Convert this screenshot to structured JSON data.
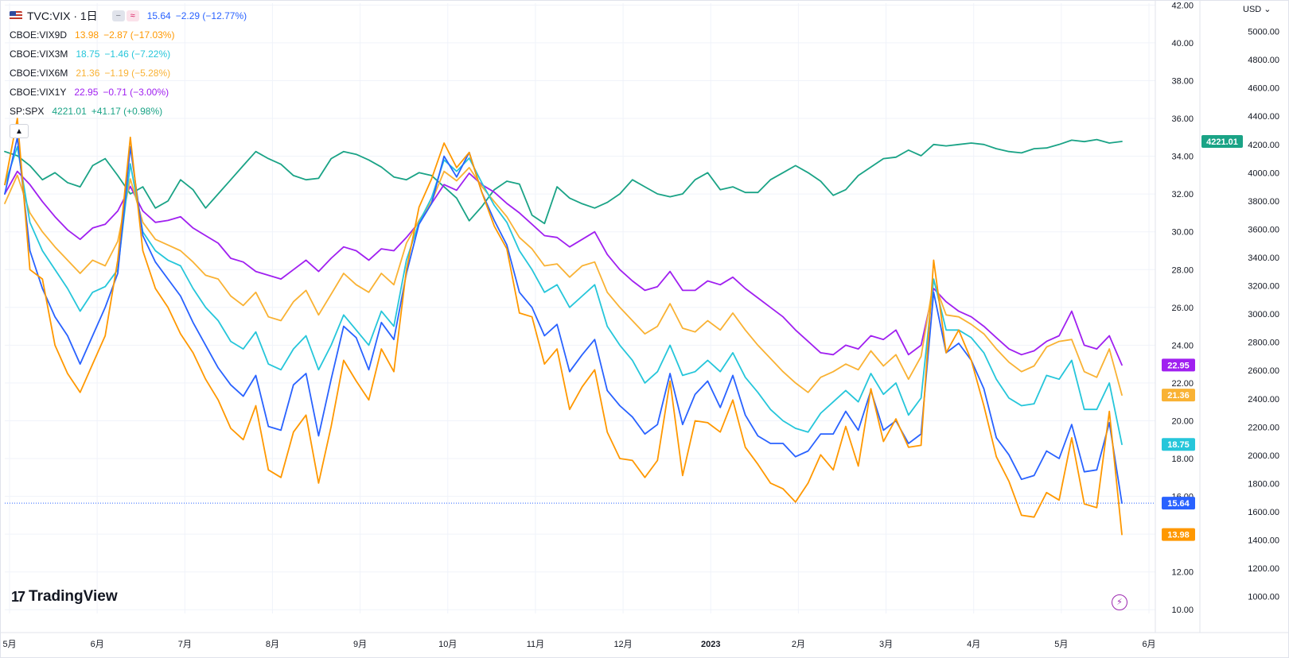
{
  "legend": {
    "main": {
      "symbol": "TVC:VIX · 1日",
      "value": "15.64",
      "change": "−2.29 (−12.77%)",
      "color": "#2962ff"
    },
    "items": [
      {
        "symbol": "CBOE:VIX9D",
        "value": "13.98",
        "change": "−2.87 (−17.03%)",
        "color": "#ff9800"
      },
      {
        "symbol": "CBOE:VIX3M",
        "value": "18.75",
        "change": "−1.46 (−7.22%)",
        "color": "#26c6da"
      },
      {
        "symbol": "CBOE:VIX6M",
        "value": "21.36",
        "change": "−1.19 (−5.28%)",
        "color": "#f9b234"
      },
      {
        "symbol": "CBOE:VIX1Y",
        "value": "22.95",
        "change": "−0.71 (−3.00%)",
        "color": "#a020f0"
      },
      {
        "symbol": "SP:SPX",
        "value": "4221.01",
        "change": "+41.17 (+0.98%)",
        "color": "#1aa386"
      }
    ],
    "collapse_icon": "chevron-up-icon"
  },
  "brand": {
    "name": "TradingView",
    "icon": "tradingview-logo-icon"
  },
  "currency_label": "USD",
  "chart_data": {
    "type": "line",
    "x_labels": [
      "5月",
      "6月",
      "7月",
      "8月",
      "9月",
      "10月",
      "11月",
      "12月",
      "2023",
      "2月",
      "3月",
      "4月",
      "5月",
      "6月"
    ],
    "y_left_ticks": [
      "42.00",
      "40.00",
      "38.00",
      "36.00",
      "34.00",
      "32.00",
      "30.00",
      "28.00",
      "26.00",
      "24.00",
      "22.00",
      "20.00",
      "18.00",
      "16.00",
      "14.00",
      "12.00",
      "10.00"
    ],
    "y_right_ticks": [
      "5000.00",
      "4800.00",
      "4600.00",
      "4400.00",
      "4200.00",
      "4000.00",
      "3800.00",
      "3600.00",
      "3400.00",
      "3200.00",
      "3000.00",
      "2800.00",
      "2600.00",
      "2400.00",
      "2200.00",
      "2000.00",
      "1800.00",
      "1600.00",
      "1400.00",
      "1200.00",
      "1000.00"
    ],
    "ylim_left": [
      9.8,
      42.1
    ],
    "ylim_right": [
      880,
      5200
    ],
    "grid": true,
    "last_value_line": 15.64,
    "series": [
      {
        "name": "SP:SPX",
        "axis": "right",
        "color": "#1aa386",
        "last_label": "4221.01",
        "values": [
          4150,
          4120,
          4050,
          3950,
          4000,
          3930,
          3900,
          4050,
          4100,
          3980,
          3850,
          3900,
          3750,
          3800,
          3950,
          3880,
          3750,
          3850,
          3950,
          4050,
          4150,
          4100,
          4060,
          3980,
          3950,
          3960,
          4100,
          4150,
          4130,
          4090,
          4040,
          3970,
          3950,
          4000,
          3980,
          3900,
          3820,
          3660,
          3760,
          3880,
          3940,
          3920,
          3700,
          3640,
          3900,
          3820,
          3780,
          3750,
          3790,
          3850,
          3950,
          3900,
          3850,
          3830,
          3850,
          3950,
          4000,
          3880,
          3900,
          3860,
          3860,
          3950,
          4000,
          4050,
          4000,
          3940,
          3840,
          3880,
          3980,
          4040,
          4100,
          4110,
          4160,
          4120,
          4200,
          4190,
          4200,
          4210,
          4200,
          4170,
          4150,
          4140,
          4170,
          4175,
          4200,
          4230,
          4220,
          4235,
          4210,
          4221
        ]
      },
      {
        "name": "CBOE:VIX1Y",
        "axis": "left",
        "color": "#a020f0",
        "last_label": "22.95",
        "values": [
          32.0,
          33.2,
          32.5,
          31.6,
          30.8,
          30.1,
          29.6,
          30.2,
          30.4,
          31.1,
          32.4,
          31.1,
          30.5,
          30.6,
          30.8,
          30.2,
          29.8,
          29.4,
          28.6,
          28.4,
          27.9,
          27.7,
          27.5,
          28.0,
          28.5,
          27.9,
          28.6,
          29.2,
          29.0,
          28.5,
          29.1,
          29.0,
          29.7,
          30.5,
          31.5,
          32.5,
          32.2,
          33.1,
          32.5,
          32.1,
          31.5,
          31.0,
          30.4,
          29.8,
          29.7,
          29.2,
          29.6,
          30.0,
          28.8,
          28.0,
          27.4,
          26.9,
          27.1,
          27.9,
          26.9,
          26.9,
          27.4,
          27.2,
          27.6,
          27.0,
          26.5,
          26.0,
          25.5,
          24.8,
          24.2,
          23.6,
          23.5,
          24.0,
          23.8,
          24.5,
          24.3,
          24.8,
          23.5,
          24.0,
          27.0,
          26.3,
          25.8,
          25.5,
          25.0,
          24.4,
          23.8,
          23.5,
          23.7,
          24.2,
          24.5,
          25.8,
          24.0,
          23.8,
          24.5,
          22.95
        ]
      },
      {
        "name": "CBOE:VIX6M",
        "axis": "left",
        "color": "#f9b234",
        "last_label": "21.36",
        "values": [
          31.5,
          33.0,
          31.0,
          30.0,
          29.2,
          28.5,
          27.8,
          28.5,
          28.2,
          29.5,
          32.8,
          30.5,
          29.6,
          29.3,
          29.0,
          28.4,
          27.7,
          27.5,
          26.6,
          26.1,
          26.8,
          25.5,
          25.3,
          26.3,
          26.9,
          25.6,
          26.7,
          27.8,
          27.2,
          26.8,
          27.8,
          27.2,
          29.4,
          30.6,
          31.6,
          33.2,
          32.7,
          33.4,
          32.4,
          31.6,
          30.8,
          29.7,
          29.1,
          28.2,
          28.3,
          27.6,
          28.2,
          28.4,
          26.8,
          26.0,
          25.3,
          24.6,
          25.0,
          26.2,
          24.9,
          24.7,
          25.3,
          24.8,
          25.7,
          24.8,
          24.0,
          23.3,
          22.6,
          22.0,
          21.5,
          22.3,
          22.6,
          23.0,
          22.7,
          23.7,
          22.9,
          23.5,
          22.2,
          23.4,
          27.4,
          25.6,
          25.5,
          25.1,
          24.6,
          23.8,
          23.1,
          22.6,
          22.9,
          23.9,
          24.2,
          24.3,
          22.6,
          22.3,
          23.8,
          21.36
        ]
      },
      {
        "name": "CBOE:VIX3M",
        "axis": "left",
        "color": "#26c6da",
        "last_label": "18.75",
        "values": [
          32.5,
          34.5,
          30.5,
          29.0,
          28.0,
          27.0,
          25.8,
          26.8,
          27.1,
          28.0,
          33.6,
          30.0,
          29.0,
          28.5,
          28.2,
          27.0,
          26.0,
          25.3,
          24.2,
          23.8,
          24.7,
          23.0,
          22.7,
          23.8,
          24.5,
          22.7,
          24.0,
          25.6,
          24.8,
          24.0,
          25.8,
          25.0,
          28.5,
          30.5,
          31.8,
          33.8,
          33.2,
          33.9,
          32.6,
          31.4,
          30.5,
          29.0,
          28.0,
          26.8,
          27.2,
          26.0,
          26.6,
          27.2,
          25.0,
          24.0,
          23.2,
          22.0,
          22.6,
          24.0,
          22.4,
          22.6,
          23.2,
          22.6,
          23.6,
          22.3,
          21.5,
          20.6,
          20.0,
          19.6,
          19.4,
          20.4,
          21.0,
          21.6,
          21.0,
          22.5,
          21.4,
          22.0,
          20.3,
          21.2,
          27.5,
          24.8,
          24.8,
          24.4,
          23.6,
          22.2,
          21.2,
          20.8,
          20.9,
          22.4,
          22.2,
          23.2,
          20.6,
          20.6,
          22.0,
          18.75
        ]
      },
      {
        "name": "TVC:VIX",
        "axis": "left",
        "color": "#2962ff",
        "last_label": "15.64",
        "values": [
          32.0,
          35.0,
          29.0,
          27.0,
          25.5,
          24.5,
          23.0,
          24.5,
          26.0,
          27.8,
          34.5,
          29.8,
          28.4,
          27.5,
          26.6,
          25.2,
          24.0,
          22.8,
          21.9,
          21.3,
          22.4,
          19.7,
          19.5,
          21.9,
          22.5,
          19.2,
          22.2,
          25.0,
          24.4,
          22.7,
          25.2,
          24.3,
          27.8,
          30.4,
          31.5,
          34.0,
          32.9,
          34.2,
          32.1,
          30.6,
          29.3,
          26.8,
          26.0,
          24.5,
          25.1,
          22.6,
          23.5,
          24.3,
          21.6,
          20.8,
          20.2,
          19.3,
          19.8,
          22.5,
          19.8,
          21.4,
          22.1,
          20.7,
          22.4,
          20.3,
          19.2,
          18.8,
          18.8,
          18.1,
          18.4,
          19.3,
          19.3,
          20.5,
          19.5,
          21.6,
          19.5,
          20.0,
          18.8,
          19.3,
          26.8,
          23.6,
          24.1,
          23.2,
          21.7,
          19.1,
          18.2,
          16.9,
          17.1,
          18.4,
          18.0,
          19.8,
          17.3,
          17.4,
          19.9,
          15.64
        ]
      },
      {
        "name": "CBOE:VIX9D",
        "axis": "left",
        "color": "#ff9800",
        "last_label": "13.98",
        "values": [
          32.5,
          36.0,
          28.0,
          27.5,
          24.0,
          22.5,
          21.5,
          23.0,
          24.5,
          28.5,
          35.0,
          29.0,
          27.0,
          26.0,
          24.6,
          23.6,
          22.2,
          21.1,
          19.6,
          19.0,
          20.8,
          17.4,
          17.0,
          19.4,
          20.3,
          16.7,
          19.7,
          23.2,
          22.1,
          21.1,
          23.8,
          22.6,
          28.0,
          31.3,
          32.8,
          34.7,
          33.4,
          34.2,
          32.1,
          30.3,
          29.1,
          25.7,
          25.5,
          23.0,
          23.8,
          20.6,
          21.8,
          22.7,
          19.4,
          18.0,
          17.9,
          17.0,
          17.9,
          22.1,
          17.1,
          20.0,
          19.9,
          19.4,
          21.1,
          18.6,
          17.7,
          16.7,
          16.4,
          15.7,
          16.7,
          18.2,
          17.4,
          19.7,
          17.6,
          21.7,
          18.9,
          20.1,
          18.6,
          18.7,
          28.5,
          23.6,
          24.8,
          23.2,
          20.8,
          18.1,
          16.8,
          15.0,
          14.9,
          16.2,
          15.8,
          19.1,
          15.6,
          15.4,
          20.5,
          13.98
        ]
      }
    ]
  }
}
